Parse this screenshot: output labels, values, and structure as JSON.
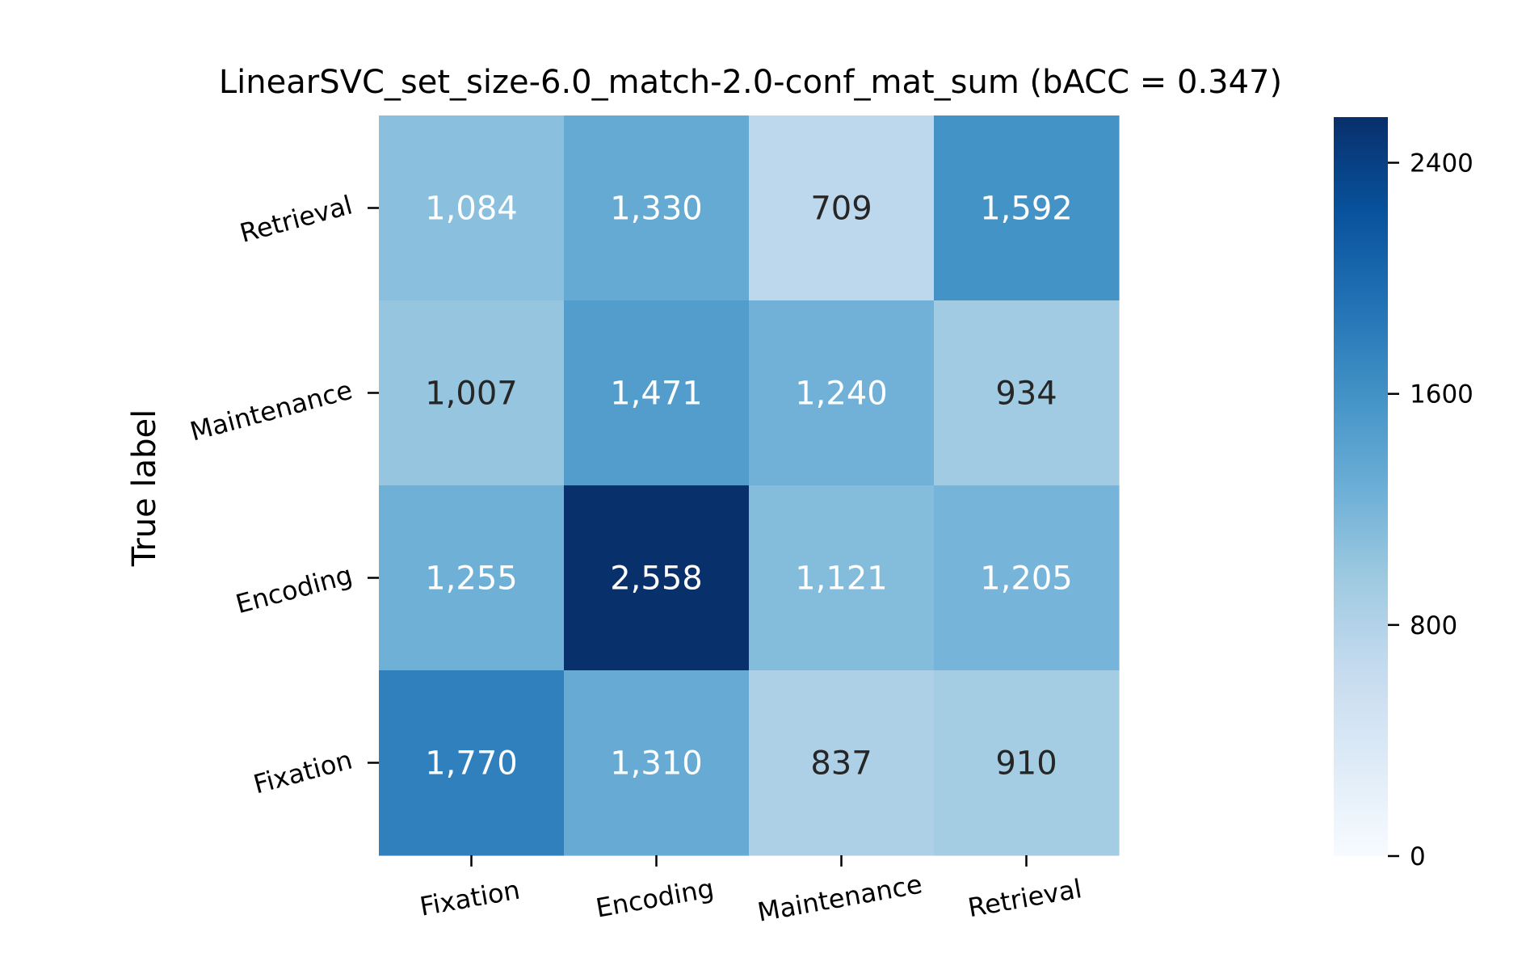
{
  "chart_data": {
    "type": "heatmap",
    "title": "LinearSVC_set_size-6.0_match-2.0-conf_mat_sum (bACC = 0.347)",
    "ylabel": "True label",
    "xlabel": "",
    "x_categories": [
      "Fixation",
      "Encoding",
      "Maintenance",
      "Retrieval"
    ],
    "y_categories": [
      "Retrieval",
      "Maintenance",
      "Encoding",
      "Fixation"
    ],
    "matrix": [
      [
        1084,
        1330,
        709,
        1592
      ],
      [
        1007,
        1471,
        1240,
        934
      ],
      [
        1255,
        2558,
        1121,
        1205
      ],
      [
        1770,
        1310,
        837,
        910
      ]
    ],
    "cell_labels": [
      [
        "1,084",
        "1,330",
        "709",
        "1,592"
      ],
      [
        "1,007",
        "1,471",
        "1,240",
        "934"
      ],
      [
        "1,255",
        "2,558",
        "1,121",
        "1,205"
      ],
      [
        "1,770",
        "1,310",
        "837",
        "910"
      ]
    ],
    "colorbar": {
      "min": 0,
      "max": 2558,
      "ticks": [
        0,
        800,
        1600,
        2400
      ],
      "tick_labels": [
        "0",
        "800",
        "1600",
        "2400"
      ]
    },
    "colormap": {
      "name": "Blues",
      "stops": [
        "#f7fbff",
        "#deebf7",
        "#c6dbef",
        "#9ecae1",
        "#6baed6",
        "#4292c6",
        "#2171b5",
        "#08519c",
        "#08306b"
      ]
    },
    "text_colors": {
      "dark": "#262626",
      "light": "#ffffff"
    }
  }
}
